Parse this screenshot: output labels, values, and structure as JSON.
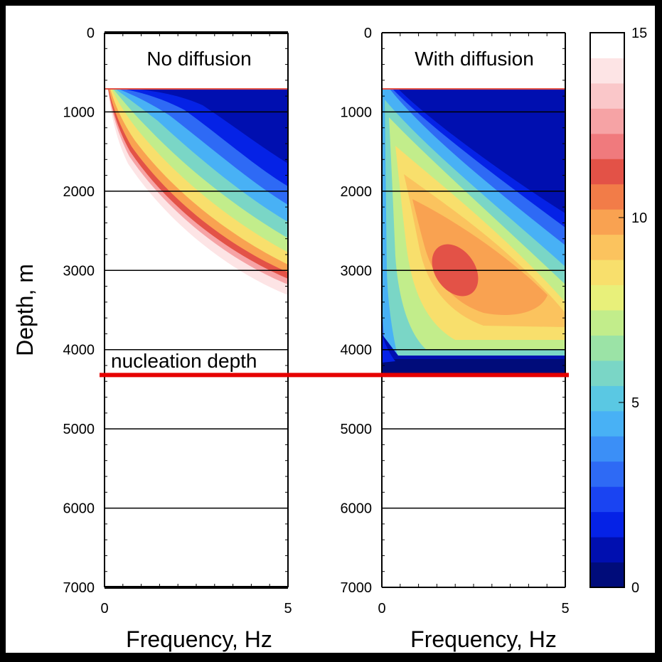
{
  "chart_data": [
    {
      "type": "heatmap",
      "title": "No diffusion",
      "xlabel": "Frequency, Hz",
      "ylabel": "Depth, m",
      "xlim": [
        0,
        5
      ],
      "ylim": [
        7000,
        0
      ],
      "x_ticks": [
        "0",
        "5"
      ],
      "y_ticks": [
        "0",
        "1000",
        "2000",
        "3000",
        "4000",
        "5000",
        "6000",
        "7000"
      ],
      "grid_y": [
        1000,
        2000,
        3000,
        4000,
        5000,
        6000
      ],
      "data_top_depth": 700,
      "annotation": "nucleation depth",
      "nucleation_depth": 4320,
      "colorscale_range": [
        0,
        15
      ]
    },
    {
      "type": "heatmap",
      "title": "With diffusion",
      "xlabel": "Frequency, Hz",
      "ylabel": "",
      "xlim": [
        0,
        5
      ],
      "ylim": [
        7000,
        0
      ],
      "x_ticks": [
        "0",
        "5"
      ],
      "y_ticks": [
        "0",
        "1000",
        "2000",
        "3000",
        "4000",
        "5000",
        "6000",
        "7000"
      ],
      "grid_y": [
        1000,
        2000,
        3000,
        4000,
        5000,
        6000
      ],
      "data_top_depth": 700,
      "data_bottom_depth": 4320,
      "peak": {
        "frequency": 1.9,
        "depth": 2900,
        "value": 11.5
      },
      "colorscale_range": [
        0,
        15
      ]
    }
  ],
  "colorbar": {
    "min": 0,
    "max": 15,
    "ticks": [
      "0",
      "5",
      "10",
      "15"
    ],
    "colors": [
      "#000c7a",
      "#000fb0",
      "#0522e6",
      "#1a44f2",
      "#2e6af5",
      "#3b8ff7",
      "#48b1f5",
      "#5ac8e3",
      "#7ad6c6",
      "#9be3a6",
      "#c2ed8b",
      "#e8f07a",
      "#f8df6c",
      "#fbc35e",
      "#f9a251",
      "#f27c48",
      "#e35247",
      "#f07a7d",
      "#f6a3a5",
      "#fac7c9",
      "#fde4e5",
      "#ffffff"
    ]
  },
  "nucleation_line_color": "#e60000"
}
